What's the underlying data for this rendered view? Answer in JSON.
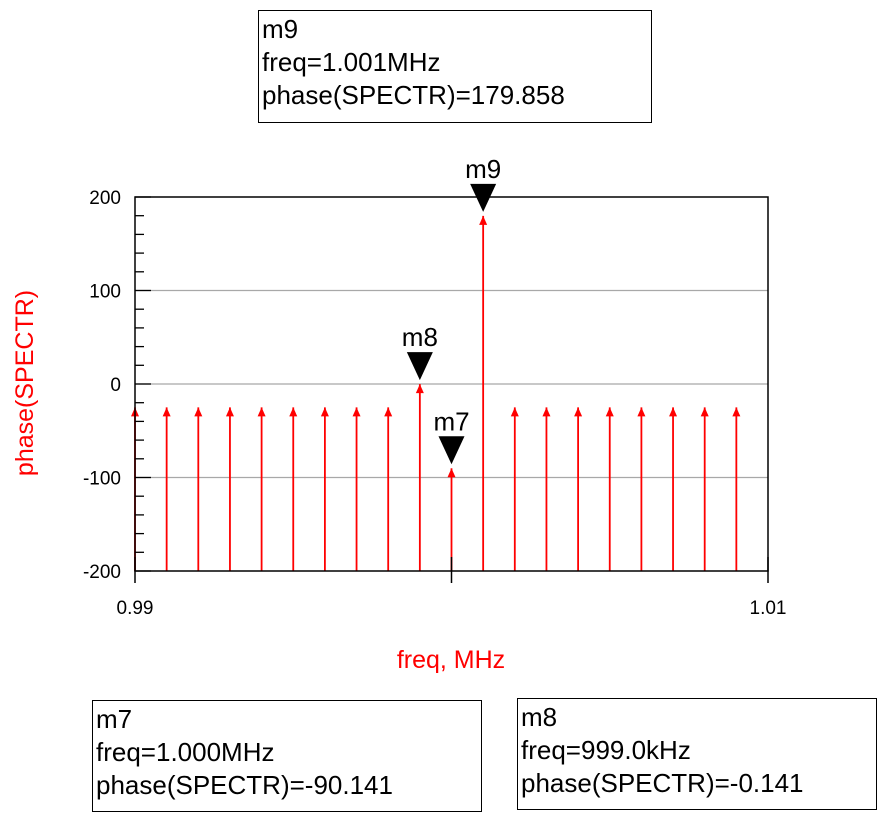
{
  "chart_data": {
    "type": "stem",
    "xlabel": "freq, MHz",
    "ylabel": "phase(SPECTR)",
    "xlim": [
      0.99,
      1.01
    ],
    "ylim": [
      -200,
      200
    ],
    "x_tick_labels": [
      "0.99",
      "1.01"
    ],
    "y_ticks": [
      -200,
      -100,
      0,
      100,
      200
    ],
    "y_tick_labels": [
      "-200",
      "-100",
      "0",
      "100",
      "200"
    ],
    "grid": true,
    "stem_color": "#ff0000",
    "series": [
      {
        "x": [
          0.99,
          0.991,
          0.992,
          0.993,
          0.994,
          0.995,
          0.996,
          0.997,
          0.998,
          0.999,
          1.0,
          1.001,
          1.002,
          1.003,
          1.004,
          1.005,
          1.006,
          1.007,
          1.008,
          1.009
        ],
        "values": [
          -25,
          -25,
          -25,
          -25,
          -25,
          -25,
          -25,
          -25,
          -25,
          -0.141,
          -90.141,
          179.858,
          -25,
          -25,
          -25,
          -25,
          -25,
          -25,
          -25,
          -25
        ]
      }
    ],
    "markers": [
      {
        "id": "m9",
        "label": "m9",
        "x": 1.001,
        "y": 179.858
      },
      {
        "id": "m8",
        "label": "m8",
        "x": 0.999,
        "y": -0.141
      },
      {
        "id": "m7",
        "label": "m7",
        "x": 1.0,
        "y": -90.141
      }
    ]
  },
  "marker_boxes": {
    "m9": {
      "name": "m9",
      "freq": "freq=1.001MHz",
      "phase": "phase(SPECTR)=179.858"
    },
    "m7": {
      "name": "m7",
      "freq": "freq=1.000MHz",
      "phase": "phase(SPECTR)=-90.141"
    },
    "m8": {
      "name": "m8",
      "freq": "freq=999.0kHz",
      "phase": "phase(SPECTR)=-0.141"
    }
  }
}
